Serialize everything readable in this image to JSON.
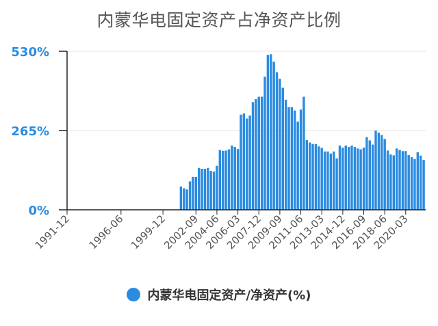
{
  "chart_data": {
    "type": "bar",
    "title": "内蒙华电固定资产占净资产比例",
    "xlabel": "",
    "ylabel": "",
    "ylim": [
      0,
      530
    ],
    "yticks": [
      0,
      265,
      530
    ],
    "ytick_labels": [
      "0%",
      "265%",
      "530%"
    ],
    "grid": true,
    "legend_position": "bottom",
    "x_tick_labels": [
      "1991-12",
      "1996-06",
      "1999-12",
      "2002-09",
      "2004-06",
      "2006-03",
      "2007-12",
      "2009-09",
      "2011-06",
      "2013-03",
      "2014-12",
      "2016-09",
      "2018-06",
      "2020-03"
    ],
    "series": [
      {
        "name": "内蒙华电固定资产/净资产(%)",
        "color": "#2b8be0",
        "categories": [
          "2001-06",
          "2001-09",
          "2001-12",
          "2002-03",
          "2002-06",
          "2002-09",
          "2002-12",
          "2003-03",
          "2003-06",
          "2003-09",
          "2003-12",
          "2004-03",
          "2004-06",
          "2004-09",
          "2004-12",
          "2005-03",
          "2005-06",
          "2005-09",
          "2005-12",
          "2006-03",
          "2006-06",
          "2006-09",
          "2006-12",
          "2007-03",
          "2007-06",
          "2007-09",
          "2007-12",
          "2008-03",
          "2008-06",
          "2008-09",
          "2008-12",
          "2009-03",
          "2009-06",
          "2009-09",
          "2009-12",
          "2010-03",
          "2010-06",
          "2010-09",
          "2010-12",
          "2011-03",
          "2011-06",
          "2011-09",
          "2011-12",
          "2012-03",
          "2012-06",
          "2012-09",
          "2012-12",
          "2013-03",
          "2013-06",
          "2013-09",
          "2013-12",
          "2014-03",
          "2014-06",
          "2014-09",
          "2014-12",
          "2015-03",
          "2015-06",
          "2015-09",
          "2015-12",
          "2016-03",
          "2016-06",
          "2016-09",
          "2016-12",
          "2017-03",
          "2017-06",
          "2017-09",
          "2017-12",
          "2018-03",
          "2018-06",
          "2018-09",
          "2018-12",
          "2019-03",
          "2019-06",
          "2019-09",
          "2019-12",
          "2020-03",
          "2020-06",
          "2020-09",
          "2020-12",
          "2021-03",
          "2021-06",
          "2021-09"
        ],
        "values": [
          78,
          72,
          68,
          95,
          110,
          110,
          140,
          137,
          137,
          140,
          130,
          128,
          147,
          200,
          197,
          198,
          202,
          215,
          210,
          203,
          318,
          322,
          305,
          315,
          360,
          370,
          378,
          378,
          445,
          518,
          520,
          495,
          460,
          438,
          408,
          368,
          343,
          343,
          332,
          295,
          335,
          378,
          233,
          225,
          220,
          220,
          212,
          207,
          195,
          195,
          188,
          195,
          172,
          215,
          208,
          215,
          210,
          215,
          210,
          205,
          202,
          208,
          243,
          232,
          218,
          265,
          258,
          250,
          237,
          198,
          185,
          182,
          205,
          200,
          196,
          196,
          183,
          176,
          170,
          193,
          181,
          167
        ]
      }
    ]
  }
}
